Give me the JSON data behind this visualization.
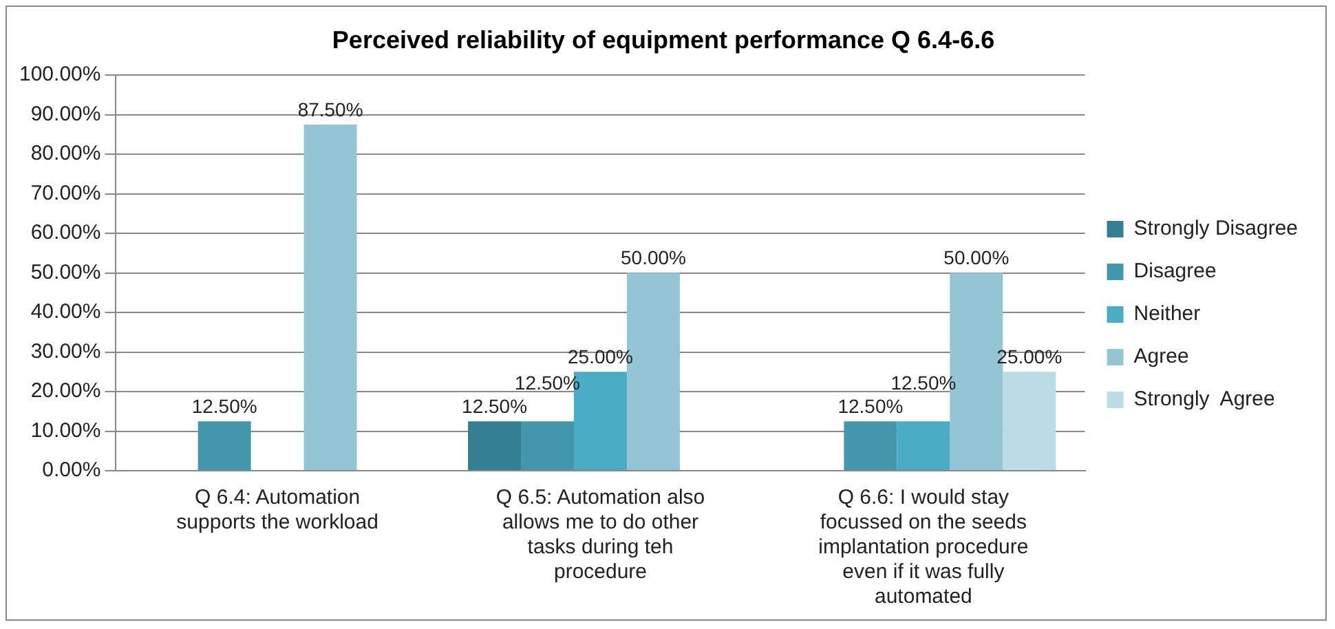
{
  "chart_data": {
    "type": "bar",
    "title": "Perceived reliability of equipment performance Q 6.4-6.6",
    "categories": [
      "Q 6.4: Automation supports the workload",
      "Q 6.5: Automation also allows me to do other tasks during teh procedure",
      "Q 6.6: I would stay focussed on the seeds implantation procedure even if it was fully automated"
    ],
    "series": [
      {
        "name": "Strongly Disagree",
        "color": "#357f94",
        "values": [
          null,
          12.5,
          null
        ],
        "value_labels": [
          null,
          "12.50%",
          null
        ]
      },
      {
        "name": "Disagree",
        "color": "#4297ad",
        "values": [
          12.5,
          12.5,
          12.5
        ],
        "value_labels": [
          "12.50%",
          "12.50%",
          "12.50%"
        ]
      },
      {
        "name": "Neither",
        "color": "#4bacc6",
        "values": [
          null,
          25,
          12.5
        ],
        "value_labels": [
          null,
          "25.00%",
          "12.50%"
        ]
      },
      {
        "name": "Agree",
        "color": "#93c5d5",
        "values": [
          87.5,
          50,
          50
        ],
        "value_labels": [
          "87.50%",
          "50.00%",
          "50.00%"
        ]
      },
      {
        "name": "Strongly  Agree",
        "color": "#b9dce6",
        "values": [
          null,
          null,
          25
        ],
        "value_labels": [
          null,
          null,
          "25.00%"
        ]
      }
    ],
    "ylim": [
      0,
      100
    ],
    "yticks": [
      {
        "value": 0,
        "label": "0.00%"
      },
      {
        "value": 10,
        "label": "10.00%"
      },
      {
        "value": 20,
        "label": "20.00%"
      },
      {
        "value": 30,
        "label": "30.00%"
      },
      {
        "value": 40,
        "label": "40.00%"
      },
      {
        "value": 50,
        "label": "50.00%"
      },
      {
        "value": 60,
        "label": "60.00%"
      },
      {
        "value": 70,
        "label": "70.00%"
      },
      {
        "value": 80,
        "label": "80.00%"
      },
      {
        "value": 90,
        "label": "90.00%"
      },
      {
        "value": 100,
        "label": "100.00%"
      }
    ],
    "grid": "y",
    "legend": "right"
  }
}
